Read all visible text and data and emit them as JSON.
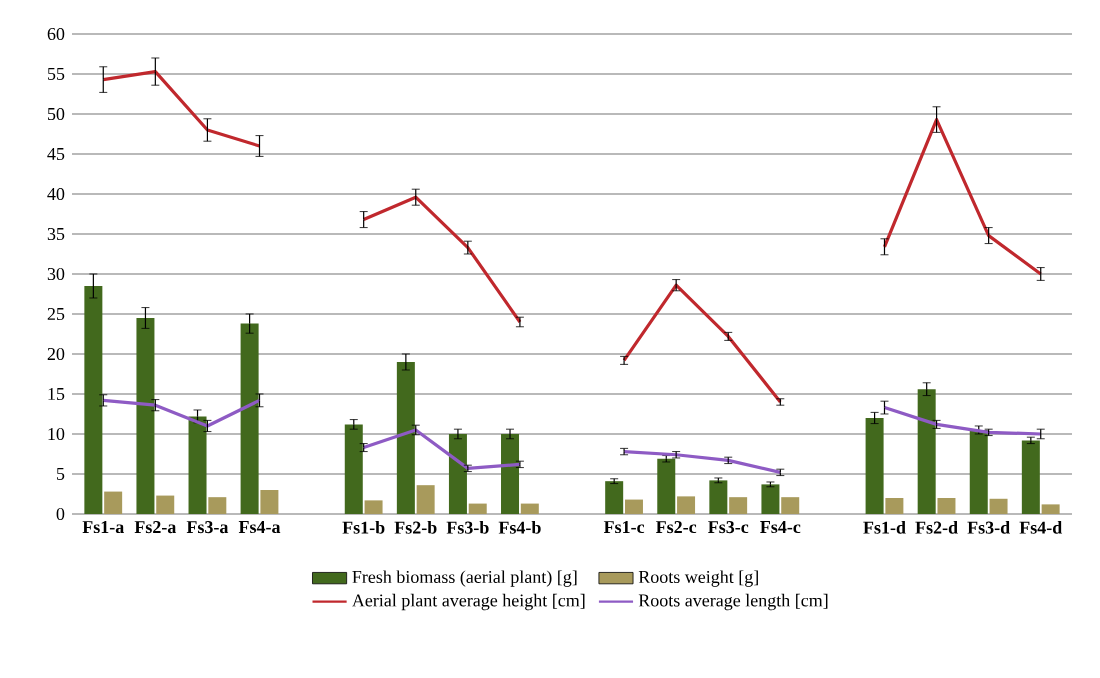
{
  "chart_data": {
    "type": "bar",
    "categories": [
      "Fs1-a",
      "Fs2-a",
      "Fs3-a",
      "Fs4-a",
      null,
      "Fs1-b",
      "Fs2-b",
      "Fs3-b",
      "Fs4-b",
      null,
      "Fs1-c",
      "Fs2-c",
      "Fs3-c",
      "Fs4-c",
      null,
      "Fs1-d",
      "Fs2-d",
      "Fs3-d",
      "Fs4-d"
    ],
    "series": [
      {
        "name": "Fresh biomass (aerial plant) [g]",
        "color": "#42691d",
        "values": [
          28.5,
          24.5,
          12.2,
          23.8,
          null,
          11.2,
          19,
          10,
          10,
          null,
          4.1,
          6.9,
          4.2,
          3.7,
          null,
          12,
          15.6,
          10.5,
          9.2
        ],
        "errors": [
          1.5,
          1.3,
          0.8,
          1.2,
          null,
          0.6,
          1,
          0.6,
          0.6,
          null,
          0.3,
          0.4,
          0.3,
          0.3,
          null,
          0.7,
          0.8,
          0.5,
          0.4
        ]
      },
      {
        "name": "Roots weight [g]",
        "color": "#a89a5c",
        "values": [
          2.8,
          2.3,
          2.1,
          3.0,
          null,
          1.7,
          3.6,
          1.3,
          1.3,
          null,
          1.8,
          2.2,
          2.1,
          2.1,
          null,
          2.0,
          2.0,
          1.9,
          1.2
        ]
      },
      {
        "name": "Aerial plant average height [cm]",
        "type": "line",
        "color": "#c0282d",
        "values": [
          54.3,
          55.3,
          48,
          46,
          null,
          36.8,
          39.6,
          33.3,
          24,
          null,
          19.2,
          28.6,
          22.2,
          14,
          null,
          33.4,
          49.3,
          34.8,
          30
        ],
        "errors": [
          1.6,
          1.7,
          1.4,
          1.3,
          null,
          1,
          1,
          0.8,
          0.6,
          null,
          0.5,
          0.7,
          0.5,
          0.4,
          null,
          1,
          1.6,
          1,
          0.8
        ]
      },
      {
        "name": "Roots average length [cm]",
        "type": "line",
        "color": "#8e5bc4",
        "values": [
          14.2,
          13.6,
          11,
          14.2,
          null,
          8.3,
          10.5,
          5.7,
          6.2,
          null,
          7.8,
          7.4,
          6.7,
          5.2,
          null,
          13.3,
          11.2,
          10.2,
          10
        ],
        "errors": [
          0.7,
          0.7,
          0.7,
          0.8,
          null,
          0.5,
          0.6,
          0.4,
          0.4,
          null,
          0.4,
          0.4,
          0.4,
          0.4,
          null,
          0.8,
          0.5,
          0.4,
          0.6
        ]
      }
    ],
    "ylim": [
      0,
      60
    ],
    "yticks": [
      0,
      5,
      10,
      15,
      20,
      25,
      30,
      35,
      40,
      45,
      50,
      55,
      60
    ],
    "grid": "y",
    "legend": "bottom",
    "marker": "none",
    "line_style": "solid"
  }
}
